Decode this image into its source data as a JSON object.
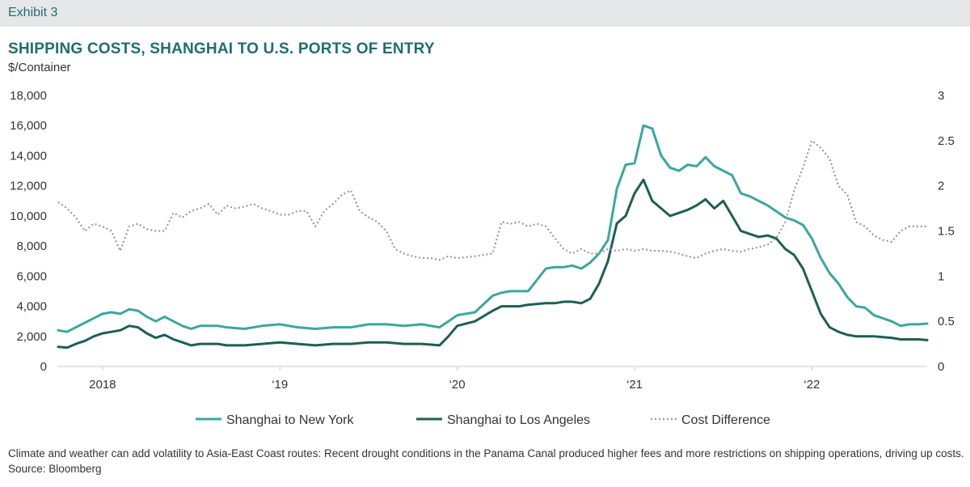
{
  "header": {
    "exhibit": "Exhibit 3"
  },
  "chart_data": {
    "type": "line",
    "title": "SHIPPING COSTS, SHANGHAI TO U.S. PORTS OF ENTRY",
    "ylabel": "$/Container",
    "ylim": [
      0,
      18000
    ],
    "y2lim": [
      0,
      3
    ],
    "y_ticks": [
      "18,000",
      "16,000",
      "14,000",
      "12,000",
      "10,000",
      "8,000",
      "6,000",
      "4,000",
      "2,000",
      "0"
    ],
    "y_tick_values": [
      18000,
      16000,
      14000,
      12000,
      10000,
      8000,
      6000,
      4000,
      2000,
      0
    ],
    "y2_ticks": [
      "3",
      "2.5",
      "2",
      "1.5",
      "1",
      "0.5",
      "0"
    ],
    "y2_tick_values": [
      3,
      2.5,
      2,
      1.5,
      1,
      0.5,
      0
    ],
    "xlim": [
      2017.95,
      2022.85
    ],
    "x_ticks": [
      "2018",
      "‘19",
      "‘20",
      "‘21",
      "‘22"
    ],
    "x_tick_values": [
      2018.2,
      2019.2,
      2020.2,
      2021.2,
      2022.2
    ],
    "colors": {
      "ny": "#3aa89c",
      "la": "#1d5f55",
      "diff": "#9a9a9a",
      "accent": "#1f6f6a"
    },
    "legend_position": "bottom",
    "series": [
      {
        "key": "ny",
        "name": "Shanghai to New York",
        "axis": "left",
        "x": [
          2017.95,
          2018.0,
          2018.05,
          2018.1,
          2018.15,
          2018.2,
          2018.25,
          2018.3,
          2018.35,
          2018.4,
          2018.45,
          2018.5,
          2018.55,
          2018.6,
          2018.65,
          2018.7,
          2018.75,
          2018.8,
          2018.85,
          2018.9,
          2019.0,
          2019.1,
          2019.2,
          2019.3,
          2019.4,
          2019.5,
          2019.6,
          2019.7,
          2019.8,
          2019.9,
          2020.0,
          2020.1,
          2020.15,
          2020.2,
          2020.3,
          2020.4,
          2020.45,
          2020.5,
          2020.55,
          2020.6,
          2020.7,
          2020.75,
          2020.8,
          2020.85,
          2020.9,
          2020.95,
          2021.0,
          2021.05,
          2021.1,
          2021.15,
          2021.2,
          2021.25,
          2021.3,
          2021.35,
          2021.4,
          2021.45,
          2021.5,
          2021.55,
          2021.6,
          2021.65,
          2021.7,
          2021.75,
          2021.8,
          2021.85,
          2021.9,
          2021.95,
          2022.0,
          2022.05,
          2022.1,
          2022.15,
          2022.2,
          2022.25,
          2022.3,
          2022.35,
          2022.4,
          2022.45,
          2022.5,
          2022.55,
          2022.6,
          2022.65,
          2022.7,
          2022.75,
          2022.8,
          2022.85
        ],
        "values": [
          2400,
          2300,
          2600,
          2900,
          3200,
          3500,
          3600,
          3500,
          3800,
          3700,
          3300,
          3000,
          3300,
          3000,
          2700,
          2500,
          2700,
          2700,
          2700,
          2600,
          2500,
          2700,
          2800,
          2600,
          2500,
          2600,
          2600,
          2800,
          2800,
          2700,
          2800,
          2600,
          3000,
          3400,
          3600,
          4700,
          4900,
          5000,
          5000,
          5000,
          6500,
          6600,
          6600,
          6700,
          6500,
          6900,
          7500,
          8400,
          11800,
          13400,
          13500,
          16000,
          15800,
          14000,
          13200,
          13000,
          13400,
          13300,
          13900,
          13300,
          13000,
          12700,
          11500,
          11300,
          11000,
          10700,
          10300,
          9900,
          9700,
          9400,
          8500,
          7200,
          6200,
          5500,
          4600,
          4000,
          3900,
          3400,
          3200,
          3000,
          2700,
          2800,
          2800,
          2850
        ]
      },
      {
        "key": "la",
        "name": "Shanghai to Los Angeles",
        "axis": "left",
        "x": [
          2017.95,
          2018.0,
          2018.05,
          2018.1,
          2018.15,
          2018.2,
          2018.25,
          2018.3,
          2018.35,
          2018.4,
          2018.45,
          2018.5,
          2018.55,
          2018.6,
          2018.65,
          2018.7,
          2018.75,
          2018.8,
          2018.85,
          2018.9,
          2019.0,
          2019.1,
          2019.2,
          2019.3,
          2019.4,
          2019.5,
          2019.6,
          2019.7,
          2019.8,
          2019.9,
          2020.0,
          2020.1,
          2020.15,
          2020.2,
          2020.3,
          2020.4,
          2020.45,
          2020.5,
          2020.55,
          2020.6,
          2020.7,
          2020.75,
          2020.8,
          2020.85,
          2020.9,
          2020.95,
          2021.0,
          2021.05,
          2021.1,
          2021.15,
          2021.2,
          2021.25,
          2021.3,
          2021.35,
          2021.4,
          2021.45,
          2021.5,
          2021.55,
          2021.6,
          2021.65,
          2021.7,
          2021.75,
          2021.8,
          2021.85,
          2021.9,
          2021.95,
          2022.0,
          2022.05,
          2022.1,
          2022.15,
          2022.2,
          2022.25,
          2022.3,
          2022.35,
          2022.4,
          2022.45,
          2022.5,
          2022.55,
          2022.6,
          2022.65,
          2022.7,
          2022.75,
          2022.8,
          2022.85
        ],
        "values": [
          1300,
          1250,
          1500,
          1700,
          2000,
          2200,
          2300,
          2400,
          2700,
          2600,
          2200,
          1900,
          2100,
          1800,
          1600,
          1400,
          1500,
          1500,
          1500,
          1400,
          1400,
          1500,
          1600,
          1500,
          1400,
          1500,
          1500,
          1600,
          1600,
          1500,
          1500,
          1400,
          2000,
          2700,
          3000,
          3700,
          4000,
          4000,
          4000,
          4100,
          4200,
          4200,
          4300,
          4300,
          4200,
          4500,
          5500,
          7000,
          9500,
          10000,
          11500,
          12400,
          11000,
          10500,
          10000,
          10200,
          10400,
          10700,
          11100,
          10500,
          11000,
          10000,
          9000,
          8800,
          8600,
          8700,
          8500,
          7800,
          7400,
          6500,
          5000,
          3500,
          2600,
          2300,
          2100,
          2000,
          2000,
          2000,
          1950,
          1900,
          1800,
          1800,
          1800,
          1750
        ]
      },
      {
        "key": "diff",
        "name": "Cost Difference",
        "axis": "right",
        "dashed": true,
        "x": [
          2017.95,
          2018.0,
          2018.05,
          2018.1,
          2018.15,
          2018.2,
          2018.25,
          2018.3,
          2018.35,
          2018.4,
          2018.45,
          2018.5,
          2018.55,
          2018.6,
          2018.65,
          2018.7,
          2018.75,
          2018.8,
          2018.85,
          2018.9,
          2018.95,
          2019.0,
          2019.05,
          2019.1,
          2019.15,
          2019.2,
          2019.25,
          2019.3,
          2019.35,
          2019.4,
          2019.45,
          2019.5,
          2019.55,
          2019.6,
          2019.65,
          2019.7,
          2019.75,
          2019.8,
          2019.85,
          2019.9,
          2019.95,
          2020.0,
          2020.05,
          2020.1,
          2020.15,
          2020.2,
          2020.3,
          2020.4,
          2020.45,
          2020.5,
          2020.55,
          2020.6,
          2020.65,
          2020.7,
          2020.75,
          2020.8,
          2020.85,
          2020.9,
          2020.95,
          2021.0,
          2021.05,
          2021.1,
          2021.15,
          2021.2,
          2021.25,
          2021.3,
          2021.35,
          2021.4,
          2021.45,
          2021.5,
          2021.55,
          2021.6,
          2021.65,
          2021.7,
          2021.75,
          2021.8,
          2021.85,
          2021.9,
          2021.95,
          2022.0,
          2022.05,
          2022.1,
          2022.15,
          2022.2,
          2022.25,
          2022.3,
          2022.35,
          2022.4,
          2022.45,
          2022.5,
          2022.55,
          2022.6,
          2022.65,
          2022.7,
          2022.75,
          2022.8,
          2022.85
        ],
        "values": [
          1.82,
          1.75,
          1.65,
          1.5,
          1.58,
          1.55,
          1.5,
          1.28,
          1.55,
          1.58,
          1.52,
          1.5,
          1.5,
          1.7,
          1.65,
          1.72,
          1.75,
          1.8,
          1.68,
          1.78,
          1.75,
          1.77,
          1.8,
          1.75,
          1.72,
          1.68,
          1.68,
          1.72,
          1.72,
          1.55,
          1.72,
          1.8,
          1.9,
          1.95,
          1.72,
          1.65,
          1.6,
          1.5,
          1.3,
          1.25,
          1.22,
          1.2,
          1.2,
          1.18,
          1.22,
          1.2,
          1.22,
          1.25,
          1.6,
          1.58,
          1.6,
          1.55,
          1.58,
          1.55,
          1.42,
          1.3,
          1.25,
          1.3,
          1.25,
          1.25,
          1.3,
          1.28,
          1.3,
          1.28,
          1.3,
          1.28,
          1.28,
          1.27,
          1.25,
          1.22,
          1.2,
          1.25,
          1.28,
          1.3,
          1.28,
          1.27,
          1.3,
          1.32,
          1.35,
          1.42,
          1.6,
          1.95,
          2.2,
          2.5,
          2.42,
          2.3,
          2.0,
          1.9,
          1.6,
          1.55,
          1.45,
          1.4,
          1.38,
          1.5,
          1.55,
          1.55,
          1.55
        ]
      }
    ]
  },
  "footer": {
    "note": "Climate and weather can add volatility to Asia-East Coast routes: Recent drought conditions in the Panama Canal produced higher fees and more restrictions on shipping operations, driving up costs.",
    "source": "Source: Bloomberg"
  }
}
